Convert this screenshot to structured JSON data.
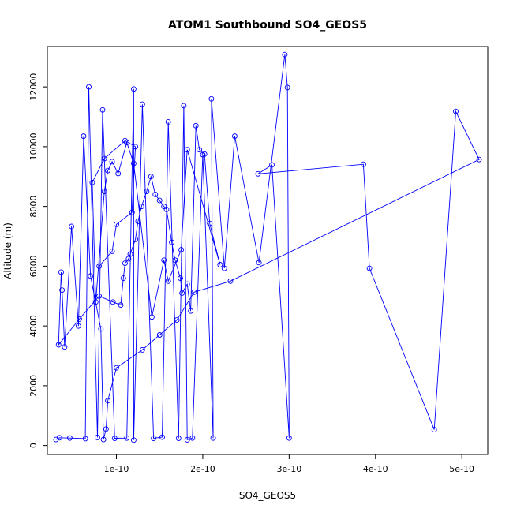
{
  "chart_data": {
    "type": "line",
    "title": "ATOM1 Southbound SO4_GEOS5",
    "xlabel": "SO4_GEOS5",
    "ylabel": "Altitude (m)",
    "xlim": [
      2e-11,
      5.3e-10
    ],
    "ylim": [
      -300,
      13350
    ],
    "x_ticks": [
      1e-10,
      2e-10,
      3e-10,
      4e-10,
      5e-10
    ],
    "x_tick_labels": [
      "1e-10",
      "2e-10",
      "3e-10",
      "4e-10",
      "5e-10"
    ],
    "y_ticks": [
      0,
      2000,
      4000,
      6000,
      8000,
      10000,
      12000
    ],
    "y_tick_labels": [
      "0",
      "2000",
      "4000",
      "6000",
      "8000",
      "10000",
      "12000"
    ],
    "grid": false,
    "line_color": "#0000ff",
    "marker": "open-circle",
    "series": [
      {
        "x": [
          3e-11,
          3.4e-11,
          4.6e-11,
          6.4e-11,
          6.8e-11,
          7.8e-11,
          8.4e-11,
          9.8e-11,
          1.12e-10,
          1.2e-10,
          1.2e-10,
          1.3e-10,
          1.43e-10,
          1.53e-10,
          1.6e-10,
          1.72e-10,
          1.78e-10,
          1.82e-10,
          1.88e-10,
          2e-10,
          2.12e-10,
          2.1e-10,
          2.25e-10,
          2.37e-10,
          2.65e-10,
          2.95e-10,
          2.98e-10,
          3e-10,
          2.8e-10,
          2.64e-10,
          3.86e-10,
          3.93e-10,
          4.68e-10,
          4.93e-10,
          5.2e-10,
          2.32e-10,
          1.9e-10,
          1.7e-10,
          1.5e-10,
          1.3e-10,
          1e-10,
          9e-11,
          8.8e-11,
          8.5e-11,
          8.2e-11,
          7e-11,
          6.2e-11,
          5.6e-11,
          4.8e-11,
          4e-11,
          3.7e-11,
          3.6e-11,
          3.3e-11,
          5.7e-11,
          8e-11,
          9.6e-11,
          1.05e-10,
          1.08e-10,
          1.1e-10,
          1.14e-10,
          1.16e-10,
          1.22e-10,
          1.25e-10,
          1.29e-10,
          1.35e-10,
          1.4e-10,
          1.45e-10,
          1.5e-10,
          1.55e-10,
          1.58e-10,
          1.64e-10,
          1.68e-10,
          1.74e-10,
          1.76e-10,
          1.82e-10,
          1.86e-10,
          1.92e-10,
          1.96e-10,
          2.02e-10,
          2.08e-10,
          2.2e-10,
          1.82e-10,
          1.75e-10,
          1.6e-10,
          1.55e-10,
          1.41e-10,
          1.2e-10,
          1.12e-10,
          1.02e-10,
          9.5e-11,
          9e-11,
          8.6e-11,
          7.6e-11,
          7.2e-11,
          8.6e-11,
          1.1e-10,
          1.22e-10,
          1.18e-10,
          1e-10,
          9.5e-11,
          8e-11
        ],
        "y": [
          200,
          260,
          250,
          230,
          12000,
          270,
          11230,
          240,
          250,
          11930,
          180,
          11420,
          240,
          280,
          10830,
          240,
          11370,
          190,
          250,
          9730,
          250,
          11600,
          5930,
          10350,
          6120,
          13080,
          11980,
          250,
          9390,
          9090,
          9410,
          5930,
          530,
          11180,
          9570,
          5500,
          5130,
          4200,
          3700,
          3200,
          2600,
          1500,
          550,
          200,
          3900,
          5670,
          10350,
          4000,
          7330,
          3300,
          5200,
          5800,
          3370,
          4230,
          5000,
          4800,
          4700,
          5600,
          6100,
          6250,
          6400,
          6900,
          7500,
          8000,
          8500,
          9000,
          8400,
          8200,
          8000,
          7900,
          6800,
          6200,
          5600,
          5100,
          5400,
          4500,
          10700,
          9900,
          9750,
          7430,
          6050,
          9900,
          6550,
          5500,
          6200,
          4300,
          9440,
          10140,
          9100,
          9500,
          9200,
          8500,
          4800,
          8800,
          9600,
          10200,
          10000,
          7800,
          7400,
          6500,
          6000
        ]
      }
    ]
  }
}
